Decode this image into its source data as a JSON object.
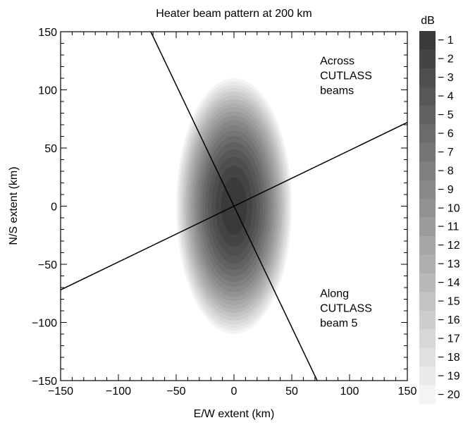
{
  "chart_data": {
    "type": "contour",
    "title": "Heater beam pattern at 200 km",
    "xlabel": "E/W extent (km)",
    "ylabel": "N/S extent (km)",
    "xlim": [
      -150,
      150
    ],
    "ylim": [
      -150,
      150
    ],
    "xticks": [
      -150,
      -100,
      -50,
      0,
      50,
      100,
      150
    ],
    "yticks": [
      -150,
      -100,
      -50,
      0,
      50,
      100,
      150
    ],
    "xtick_labels": [
      "−150",
      "−100",
      "−50",
      "0",
      "50",
      "100",
      "150"
    ],
    "ytick_labels": [
      "−150",
      "−100",
      "−50",
      "0",
      "50",
      "100",
      "150"
    ],
    "grid": false,
    "beam_pattern": {
      "center": [
        0,
        0
      ],
      "outer_semi_axis_x_km": 50,
      "outer_semi_axis_y_km": 110,
      "min_level_db": -20,
      "max_level_db": 0
    },
    "colorbar": {
      "unit": "dB",
      "levels": [
        -1,
        -2,
        -3,
        -4,
        -5,
        -6,
        -7,
        -8,
        -9,
        -10,
        -11,
        -12,
        -13,
        -14,
        -15,
        -16,
        -17,
        -18,
        -19,
        -20
      ],
      "level_labels": [
        "− 1",
        "− 2",
        "− 3",
        "− 4",
        "− 5",
        "− 6",
        "− 7",
        "− 8",
        "− 9",
        "− 10",
        "− 11",
        "− 12",
        "− 13",
        "− 14",
        "− 15",
        "− 16",
        "− 17",
        "− 18",
        "− 19",
        "− 20"
      ],
      "dark_color": "#3a3a3a",
      "light_color": "#f4f4f4"
    },
    "lines": [
      {
        "id": "along",
        "points": [
          [
            -72,
            150
          ],
          [
            72,
            -150
          ]
        ]
      },
      {
        "id": "across",
        "points": [
          [
            -150,
            -72
          ],
          [
            150,
            72
          ]
        ]
      }
    ],
    "annotations": [
      {
        "id": "across",
        "lines": [
          "Across",
          "CUTLASS",
          "beams"
        ],
        "x": 72,
        "y": 100
      },
      {
        "id": "along",
        "lines": [
          "Along",
          "CUTLASS",
          "beam 5"
        ],
        "x": 72,
        "y": -100
      }
    ]
  }
}
